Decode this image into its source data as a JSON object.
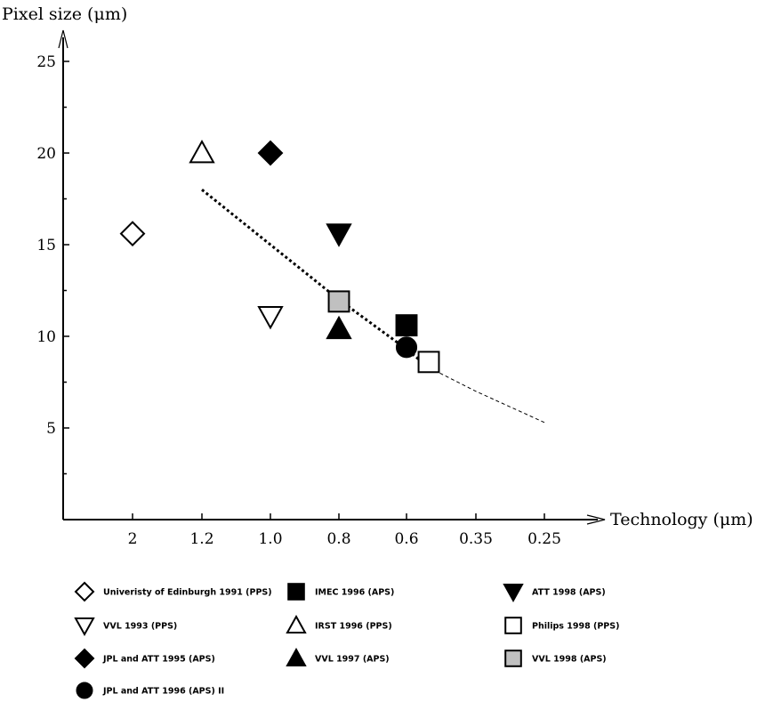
{
  "chart_data": {
    "type": "scatter",
    "title": "",
    "ylabel": "Pixel size (μm)",
    "xlabel": "Technology (μm)",
    "x_categories": [
      "2",
      "1.2",
      "1.0",
      "0.8",
      "0.6",
      "0.35",
      "0.25"
    ],
    "y_ticks": [
      5,
      10,
      15,
      20,
      25
    ],
    "ylim": [
      0,
      27
    ],
    "grid": false,
    "legend_position": "bottom",
    "series": [
      {
        "name": "Univeristy of Edinburgh 1991 (PPS)",
        "marker": "diamond-open",
        "x": "2",
        "y": 15.6
      },
      {
        "name": "IMEC 1996 (APS)",
        "marker": "square-filled",
        "x": "0.6",
        "y": 10.6
      },
      {
        "name": "ATT 1998 (APS)",
        "marker": "triangle-down-filled",
        "x": "0.8",
        "y": 15.6
      },
      {
        "name": "VVL 1993 (PPS)",
        "marker": "triangle-down-open",
        "x": "1.0",
        "y": 11.1
      },
      {
        "name": "IRST 1996 (PPS)",
        "marker": "triangle-up-open",
        "x": "1.2",
        "y": 20.0
      },
      {
        "name": "Philips 1998 (PPS)",
        "marker": "square-open",
        "x": "0.5",
        "y": 8.6
      },
      {
        "name": "JPL and ATT 1995 (APS)",
        "marker": "diamond-filled",
        "x": "1.0",
        "y": 20.0
      },
      {
        "name": "VVL 1997 (APS)",
        "marker": "triangle-up-filled",
        "x": "0.8",
        "y": 10.4
      },
      {
        "name": "VVL 1998 (APS)",
        "marker": "square-gray",
        "x": "0.8",
        "y": 11.9
      },
      {
        "name": "JPL and ATT 1996 (APS) II",
        "marker": "circle-filled",
        "x": "0.6",
        "y": 9.4
      }
    ],
    "trend_line": {
      "dotted": [
        [
          "1.2",
          18.0
        ],
        [
          "1.0",
          15.0
        ],
        [
          "0.8",
          12.0
        ],
        [
          "0.6",
          9.3
        ],
        [
          "0.5",
          8.3
        ]
      ],
      "dashed": [
        [
          "0.5",
          8.3
        ],
        [
          "0.35",
          7.0
        ],
        [
          "0.25",
          5.3
        ]
      ]
    }
  }
}
